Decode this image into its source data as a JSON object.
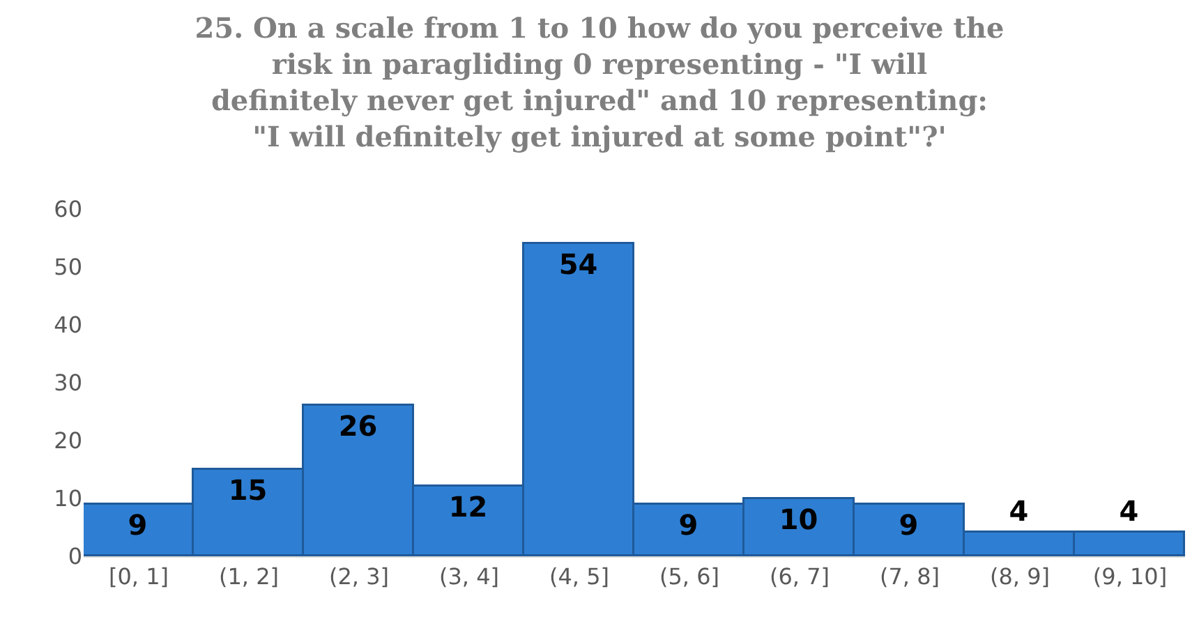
{
  "chart_data": {
    "type": "bar",
    "title": "25. On a scale from 1 to 10 how do you perceive the risk in paragliding 0 representing - \"I will definitely never get injured\" and 10 representing: \"I will definitely get injured at some point\"?'",
    "categories": [
      "[0, 1]",
      "(1, 2]",
      "(2, 3]",
      "(3, 4]",
      "(4, 5]",
      "(5, 6]",
      "(6, 7]",
      "(7, 8]",
      "(8, 9]",
      "(9, 10]"
    ],
    "values": [
      9,
      15,
      26,
      12,
      54,
      9,
      10,
      9,
      4,
      4
    ],
    "color": "#2e7fd3",
    "ylim": [
      0,
      60
    ],
    "yticks": [
      0,
      10,
      20,
      30,
      40,
      50,
      60
    ],
    "grid": false,
    "data_labels": true
  }
}
